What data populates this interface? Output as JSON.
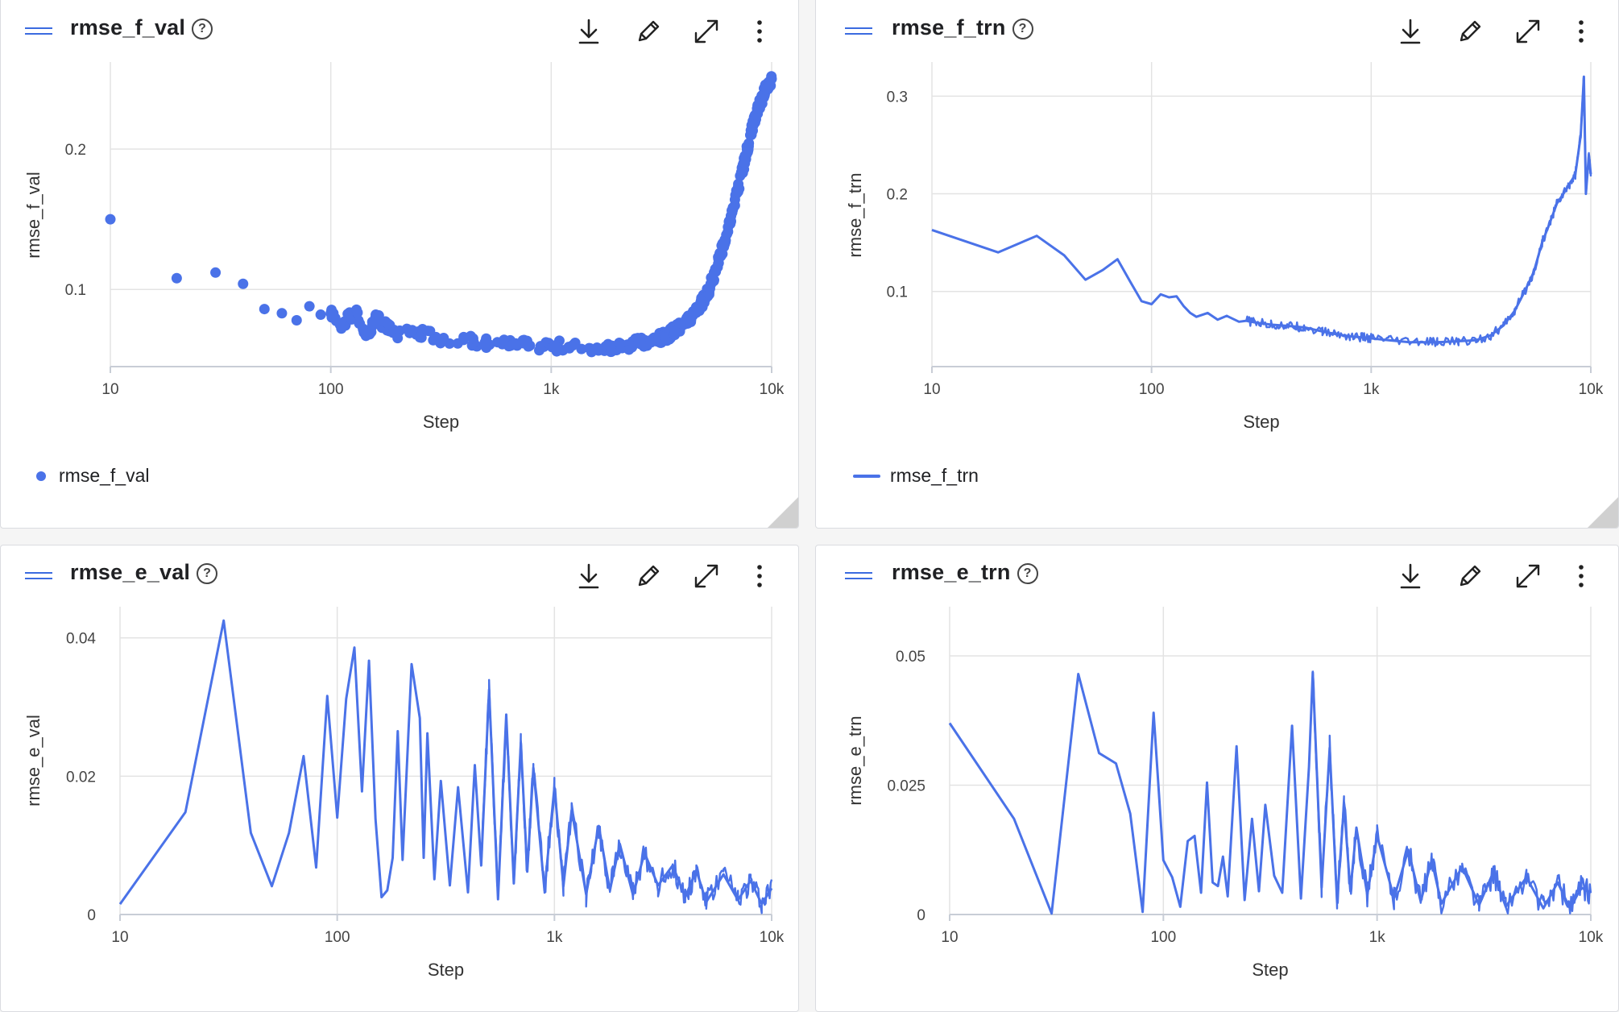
{
  "cards": [
    {
      "title": "rmse_f_val",
      "help": "?",
      "legend": "rmse_f_val",
      "actions": [
        "download-icon",
        "pencil-icon",
        "expand-icon",
        "more-vert-icon"
      ]
    },
    {
      "title": "rmse_f_trn",
      "help": "?",
      "legend": "rmse_f_trn",
      "actions": [
        "download-icon",
        "pencil-icon",
        "expand-icon",
        "more-vert-icon"
      ]
    },
    {
      "title": "rmse_e_val",
      "help": "?",
      "legend": "",
      "actions": [
        "download-icon",
        "pencil-icon",
        "expand-icon",
        "more-vert-icon"
      ]
    },
    {
      "title": "rmse_e_trn",
      "help": "?",
      "legend": "",
      "actions": [
        "download-icon",
        "pencil-icon",
        "expand-icon",
        "more-vert-icon"
      ]
    }
  ],
  "colors": {
    "series": "#4a72e8",
    "grid": "#e3e3e3",
    "axis": "#c8cdd6"
  },
  "chart_data": [
    {
      "type": "scatter",
      "title": "rmse_f_val",
      "xlabel": "Step",
      "ylabel": "rmse_f_val",
      "xscale": "log",
      "xlim": [
        10,
        10000
      ],
      "ylim": [
        0.045,
        0.262
      ],
      "xticks": [
        10,
        100,
        1000,
        10000
      ],
      "xticklabels": [
        "10",
        "100",
        "1k",
        "10k"
      ],
      "yticks": [
        0.1,
        0.2
      ],
      "yticklabels": [
        "0.1",
        "0.2"
      ],
      "legend": "bottom-left",
      "grid": true,
      "series": [
        {
          "name": "rmse_f_val",
          "x": [
            10,
            20,
            30,
            40,
            50,
            60,
            70,
            80,
            90,
            100,
            110,
            120,
            130,
            140,
            150,
            160,
            180,
            200,
            250,
            300,
            400,
            500,
            600,
            700,
            800,
            1000,
            1200,
            1500,
            1800,
            2000,
            2300,
            2600,
            3000,
            3300,
            3600,
            4000,
            4400,
            4800,
            5200,
            5600,
            6000,
            6500,
            7000,
            7500,
            8000,
            8500,
            9000,
            9500,
            10000
          ],
          "y": [
            0.15,
            0.108,
            0.112,
            0.104,
            0.086,
            0.083,
            0.078,
            0.088,
            0.082,
            0.083,
            0.075,
            0.079,
            0.083,
            0.072,
            0.068,
            0.082,
            0.072,
            0.068,
            0.07,
            0.066,
            0.064,
            0.062,
            0.061,
            0.06,
            0.06,
            0.06,
            0.059,
            0.058,
            0.059,
            0.06,
            0.061,
            0.062,
            0.064,
            0.067,
            0.07,
            0.075,
            0.082,
            0.09,
            0.1,
            0.115,
            0.13,
            0.15,
            0.17,
            0.19,
            0.21,
            0.225,
            0.235,
            0.245,
            0.25
          ]
        }
      ]
    },
    {
      "type": "line",
      "title": "rmse_f_trn",
      "xlabel": "Step",
      "ylabel": "rmse_f_trn",
      "xscale": "log",
      "xlim": [
        10,
        10000
      ],
      "ylim": [
        0.023,
        0.335
      ],
      "xticks": [
        10,
        100,
        1000,
        10000
      ],
      "xticklabels": [
        "10",
        "100",
        "1k",
        "10k"
      ],
      "yticks": [
        0.1,
        0.2,
        0.3
      ],
      "yticklabels": [
        "0.1",
        "0.2",
        "0.3"
      ],
      "legend": "bottom-left",
      "grid": true,
      "series": [
        {
          "name": "rmse_f_trn",
          "x": [
            10,
            20,
            30,
            40,
            50,
            60,
            70,
            80,
            90,
            100,
            110,
            120,
            130,
            140,
            150,
            160,
            180,
            200,
            220,
            250,
            270,
            300,
            350,
            400,
            450,
            500,
            600,
            700,
            800,
            900,
            1000,
            1200,
            1500,
            1800,
            2000,
            2500,
            3000,
            3500,
            4000,
            4500,
            5000,
            5500,
            6000,
            6500,
            7000,
            7500,
            8000,
            8500,
            9000,
            9300,
            9500,
            9800,
            10000
          ],
          "y": [
            0.163,
            0.14,
            0.157,
            0.137,
            0.112,
            0.122,
            0.133,
            0.11,
            0.09,
            0.087,
            0.097,
            0.094,
            0.095,
            0.085,
            0.078,
            0.074,
            0.078,
            0.071,
            0.075,
            0.069,
            0.07,
            0.068,
            0.066,
            0.065,
            0.064,
            0.063,
            0.059,
            0.056,
            0.054,
            0.053,
            0.052,
            0.05,
            0.048,
            0.048,
            0.048,
            0.049,
            0.05,
            0.055,
            0.065,
            0.08,
            0.1,
            0.12,
            0.15,
            0.17,
            0.19,
            0.2,
            0.21,
            0.22,
            0.26,
            0.32,
            0.2,
            0.24,
            0.22
          ]
        }
      ]
    },
    {
      "type": "line",
      "title": "rmse_e_val",
      "xlabel": "Step",
      "ylabel": "rmse_e_val",
      "xscale": "log",
      "xlim": [
        10,
        10000
      ],
      "ylim": [
        0,
        0.0445
      ],
      "xticks": [
        10,
        100,
        1000,
        10000
      ],
      "xticklabels": [
        "10",
        "100",
        "1k",
        "10k"
      ],
      "yticks": [
        0,
        0.02,
        0.04
      ],
      "yticklabels": [
        "0",
        "0.02",
        "0.04"
      ],
      "legend": "none",
      "grid": true,
      "series": [
        {
          "name": "rmse_e_val",
          "x": [
            10,
            20,
            30,
            40,
            50,
            60,
            70,
            80,
            90,
            100,
            110,
            120,
            130,
            140,
            150,
            160,
            170,
            180,
            190,
            200,
            220,
            240,
            250,
            260,
            280,
            300,
            330,
            360,
            400,
            430,
            460,
            500,
            550,
            600,
            650,
            700,
            750,
            800,
            900,
            1000,
            1100,
            1200,
            1400,
            1600,
            1800,
            2000,
            2300,
            2600,
            3000,
            3500,
            4000,
            4500,
            5000,
            6000,
            7000,
            8000,
            9000,
            10000
          ],
          "y": [
            0.0015,
            0.0148,
            0.0425,
            0.0118,
            0.0041,
            0.0118,
            0.0229,
            0.0068,
            0.0316,
            0.014,
            0.0312,
            0.0386,
            0.0178,
            0.0367,
            0.0138,
            0.0025,
            0.0035,
            0.0082,
            0.0265,
            0.0079,
            0.0362,
            0.0284,
            0.0082,
            0.0262,
            0.0051,
            0.0193,
            0.0042,
            0.0184,
            0.0032,
            0.0216,
            0.0071,
            0.0325,
            0.0022,
            0.0289,
            0.0045,
            0.0248,
            0.0062,
            0.0212,
            0.0035,
            0.0184,
            0.0041,
            0.0151,
            0.0029,
            0.0128,
            0.0035,
            0.0102,
            0.0028,
            0.0089,
            0.0042,
            0.0071,
            0.0025,
            0.0064,
            0.0018,
            0.0058,
            0.0021,
            0.0049,
            0.0015,
            0.0038
          ]
        }
      ]
    },
    {
      "type": "line",
      "title": "rmse_e_trn",
      "xlabel": "Step",
      "ylabel": "rmse_e_trn",
      "xscale": "log",
      "xlim": [
        10,
        10000
      ],
      "ylim": [
        0,
        0.0595
      ],
      "xticks": [
        10,
        100,
        1000,
        10000
      ],
      "xticklabels": [
        "10",
        "100",
        "1k",
        "10k"
      ],
      "yticks": [
        0,
        0.025,
        0.05
      ],
      "yticklabels": [
        "0",
        "0.025",
        "0.05"
      ],
      "legend": "none",
      "grid": true,
      "series": [
        {
          "name": "rmse_e_trn",
          "x": [
            10,
            20,
            30,
            40,
            50,
            60,
            70,
            80,
            90,
            100,
            110,
            120,
            130,
            140,
            150,
            160,
            170,
            180,
            190,
            200,
            220,
            240,
            260,
            280,
            300,
            330,
            360,
            400,
            440,
            480,
            500,
            550,
            600,
            650,
            700,
            750,
            800,
            900,
            1000,
            1200,
            1400,
            1600,
            1800,
            2000,
            2500,
            3000,
            3500,
            4000,
            5000,
            6000,
            7000,
            8000,
            9000,
            10000
          ],
          "y": [
            0.037,
            0.0185,
            0.0002,
            0.0465,
            0.0312,
            0.0292,
            0.0195,
            0.0005,
            0.039,
            0.0105,
            0.0072,
            0.0015,
            0.0142,
            0.0152,
            0.0042,
            0.0255,
            0.0062,
            0.0055,
            0.0112,
            0.0035,
            0.0325,
            0.0028,
            0.0185,
            0.0045,
            0.0212,
            0.0075,
            0.0042,
            0.0365,
            0.0031,
            0.0285,
            0.0468,
            0.0052,
            0.0322,
            0.0024,
            0.0212,
            0.0045,
            0.0168,
            0.0038,
            0.0152,
            0.0032,
            0.0125,
            0.0025,
            0.0105,
            0.0021,
            0.0092,
            0.0018,
            0.0082,
            0.0015,
            0.0072,
            0.0012,
            0.0062,
            0.0011,
            0.0052,
            0.0042
          ]
        }
      ]
    }
  ]
}
